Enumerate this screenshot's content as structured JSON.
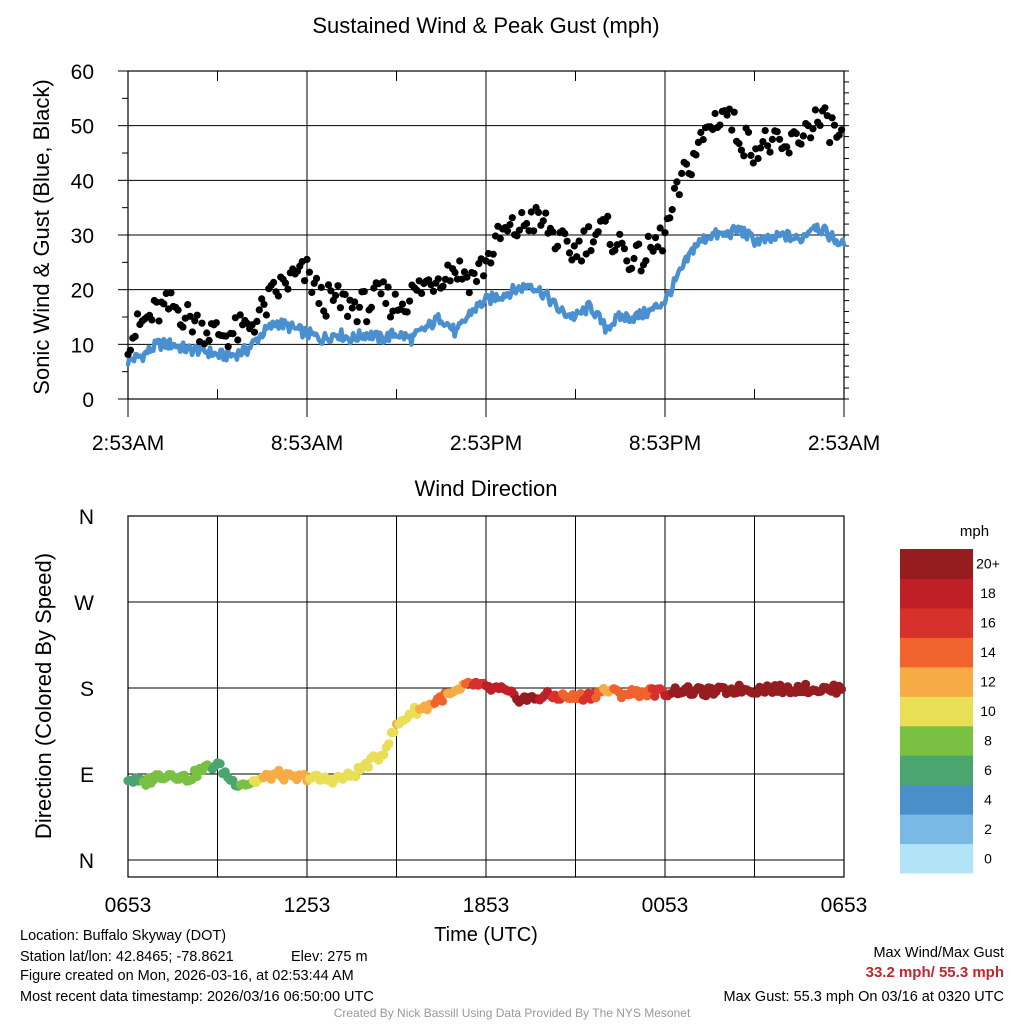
{
  "colors": {
    "wind_line": "#4a90d0",
    "gust_dots": "#000000",
    "accent_red": "#c0272d",
    "colorbar": [
      "#b3e3f7",
      "#7ab9e6",
      "#4a8fc9",
      "#4aa56e",
      "#7ac143",
      "#e8df56",
      "#f7ab45",
      "#f0632d",
      "#d7312b",
      "#bf1f26",
      "#951c1f"
    ]
  },
  "chart_data": [
    {
      "type": "scatter",
      "title": "Sustained Wind & Peak Gust (mph)",
      "ylabel": "Sonic Wind & Gust (Blue, Black)",
      "xlabel": "",
      "ylim": [
        0,
        60
      ],
      "xlim": [
        0,
        24
      ],
      "y_ticks": [
        "0",
        "10",
        "20",
        "30",
        "40",
        "50",
        "60"
      ],
      "x_tick_labels": [
        "2:53AM",
        "8:53AM",
        "2:53PM",
        "8:53PM",
        "2:53AM"
      ],
      "x_tick_hours": [
        0,
        6,
        12,
        18,
        24
      ],
      "grid": true,
      "series": [
        {
          "name": "Sustained Wind (Blue)",
          "style": "line",
          "x": [
            0,
            0.5,
            1,
            1.5,
            2,
            2.5,
            3,
            3.5,
            4,
            4.5,
            5,
            5.5,
            6,
            6.5,
            7,
            7.5,
            8,
            8.5,
            9,
            9.5,
            10,
            10.5,
            11,
            11.5,
            12,
            12.5,
            13,
            13.5,
            14,
            14.5,
            15,
            15.5,
            16,
            16.5,
            17,
            17.5,
            18,
            18.5,
            19,
            19.5,
            20,
            20.5,
            21,
            21.5,
            22,
            22.5,
            23,
            23.5,
            24
          ],
          "values": [
            7,
            8,
            10,
            10,
            9,
            9,
            8,
            8,
            9,
            12,
            14,
            13,
            12,
            11,
            12,
            11,
            12,
            11,
            12,
            11,
            13,
            15,
            12,
            16,
            18,
            19,
            20,
            21,
            19,
            16,
            15,
            17,
            13,
            15,
            15,
            16,
            18,
            23,
            28,
            30,
            30,
            31,
            29,
            29,
            30,
            29,
            32,
            30,
            28
          ]
        },
        {
          "name": "Peak Gust (Black)",
          "style": "dots",
          "x": [
            0,
            0.5,
            1,
            1.5,
            2,
            2.5,
            3,
            3.5,
            4,
            4.5,
            5,
            5.5,
            6,
            6.5,
            7,
            7.5,
            8,
            8.5,
            9,
            9.5,
            10,
            10.5,
            11,
            11.5,
            12,
            12.5,
            13,
            13.5,
            14,
            14.5,
            15,
            15.5,
            16,
            16.5,
            17,
            17.5,
            18,
            18.5,
            19,
            19.5,
            20,
            20.5,
            21,
            21.5,
            22,
            22.5,
            23,
            23.5,
            24
          ],
          "values": [
            11,
            14,
            16,
            17,
            15,
            13,
            12,
            12,
            13,
            16,
            20,
            22,
            23,
            18,
            18,
            17,
            17,
            19,
            17,
            19,
            21,
            23,
            24,
            22,
            25,
            30,
            31,
            33,
            32,
            28,
            27,
            30,
            31,
            28,
            25,
            27,
            30,
            39,
            45,
            50,
            53,
            48,
            46,
            47,
            45,
            48,
            51,
            50,
            47
          ]
        }
      ]
    },
    {
      "type": "scatter",
      "title": "Wind Direction",
      "ylabel": "Direction (Colored By Speed)",
      "xlabel": "Time (UTC)",
      "ylim": [
        0,
        360
      ],
      "xlim": [
        0,
        24
      ],
      "y_ticks": [
        "N",
        "E",
        "S",
        "W",
        "N"
      ],
      "y_tick_degrees": [
        0,
        90,
        180,
        270,
        360
      ],
      "x_tick_labels": [
        "0653",
        "1253",
        "1853",
        "0053",
        "0653"
      ],
      "x_tick_hours": [
        0,
        6,
        12,
        18,
        24
      ],
      "grid": true,
      "colorbar": {
        "title": "mph",
        "labels": [
          "0",
          "2",
          "4",
          "6",
          "8",
          "10",
          "12",
          "14",
          "16",
          "18",
          "20+"
        ]
      },
      "series": [
        {
          "name": "Direction colored by speed",
          "x": [
            0,
            0.5,
            1,
            1.5,
            2,
            2.5,
            3,
            3.5,
            4,
            4.5,
            5,
            5.5,
            6,
            6.5,
            7,
            7.5,
            8,
            8.5,
            9,
            9.5,
            10,
            10.5,
            11,
            11.5,
            12,
            12.5,
            13,
            13.5,
            14,
            14.5,
            15,
            15.5,
            16,
            16.5,
            17,
            17.5,
            18,
            18.5,
            19,
            19.5,
            20,
            20.5,
            21,
            21.5,
            22,
            22.5,
            23,
            23.5,
            24
          ],
          "values": [
            85,
            80,
            88,
            90,
            85,
            95,
            100,
            82,
            80,
            85,
            90,
            85,
            87,
            84,
            85,
            88,
            100,
            110,
            140,
            155,
            160,
            170,
            175,
            185,
            180,
            178,
            170,
            168,
            172,
            171,
            170,
            172,
            178,
            174,
            175,
            176,
            175,
            178,
            176,
            176,
            177,
            179,
            178,
            180,
            178,
            180,
            179,
            178,
            180
          ],
          "speeds": [
            6,
            8,
            9,
            9,
            8,
            10,
            6,
            7,
            9,
            12,
            14,
            13,
            12,
            11,
            12,
            11,
            12,
            11,
            12,
            11,
            13,
            15,
            12,
            16,
            18,
            19,
            20,
            21,
            19,
            16,
            15,
            17,
            13,
            15,
            15,
            16,
            18,
            23,
            28,
            30,
            30,
            31,
            29,
            29,
            30,
            29,
            32,
            30,
            28
          ]
        }
      ]
    }
  ],
  "footer": {
    "location": "Location: Buffalo Skyway (DOT)",
    "latlon": "Station lat/lon: 42.8465; -78.8621",
    "elev": "Elev: 275 m",
    "created": "Figure created on Mon, 2026-03-16, at 02:53:44 AM",
    "recent": "Most recent data timestamp: 2026/03/16 06:50:00 UTC",
    "max_title": "Max Wind/Max Gust",
    "max_values": "33.2 mph/ 55.3 mph",
    "max_gust": "Max Gust: 55.3 mph On 03/16 at 0320 UTC",
    "credit": "Created By Nick Bassill Using Data Provided By The NYS Mesonet"
  }
}
